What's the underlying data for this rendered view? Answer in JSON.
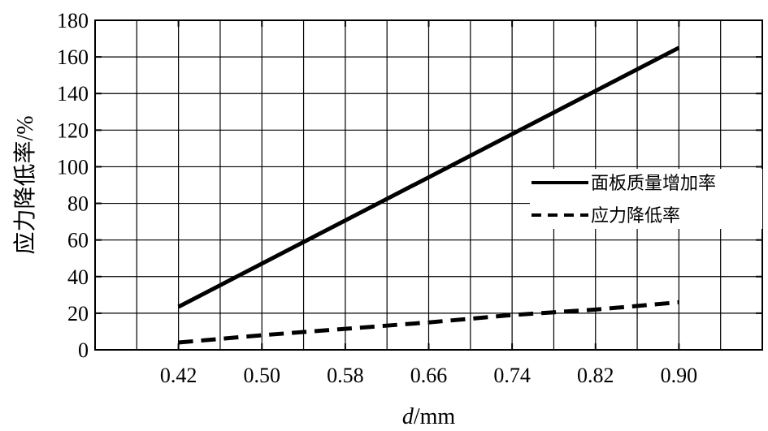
{
  "chart_data": {
    "type": "line",
    "xlabel_italic": "d",
    "xlabel_unit": "/mm",
    "ylabel": "应力降低率/%",
    "x_ticks": [
      "0.42",
      "0.50",
      "0.58",
      "0.66",
      "0.74",
      "0.82",
      "0.90"
    ],
    "y_ticks": [
      "0",
      "20",
      "40",
      "60",
      "80",
      "100",
      "120",
      "140",
      "160",
      "180"
    ],
    "xlim": [
      0.34,
      0.98
    ],
    "ylim": [
      0,
      180
    ],
    "grid": true,
    "legend_position": "right",
    "series": [
      {
        "name": "面板质量增加率",
        "style": "solid",
        "color": "#000000",
        "x": [
          0.42,
          0.9
        ],
        "y": [
          23.5,
          165
        ]
      },
      {
        "name": "应力降低率",
        "style": "dashed",
        "color": "#000000",
        "x": [
          0.42,
          0.5,
          0.58,
          0.66,
          0.74,
          0.82,
          0.9
        ],
        "y": [
          4,
          8,
          11.5,
          15,
          19,
          22,
          26
        ]
      }
    ]
  }
}
